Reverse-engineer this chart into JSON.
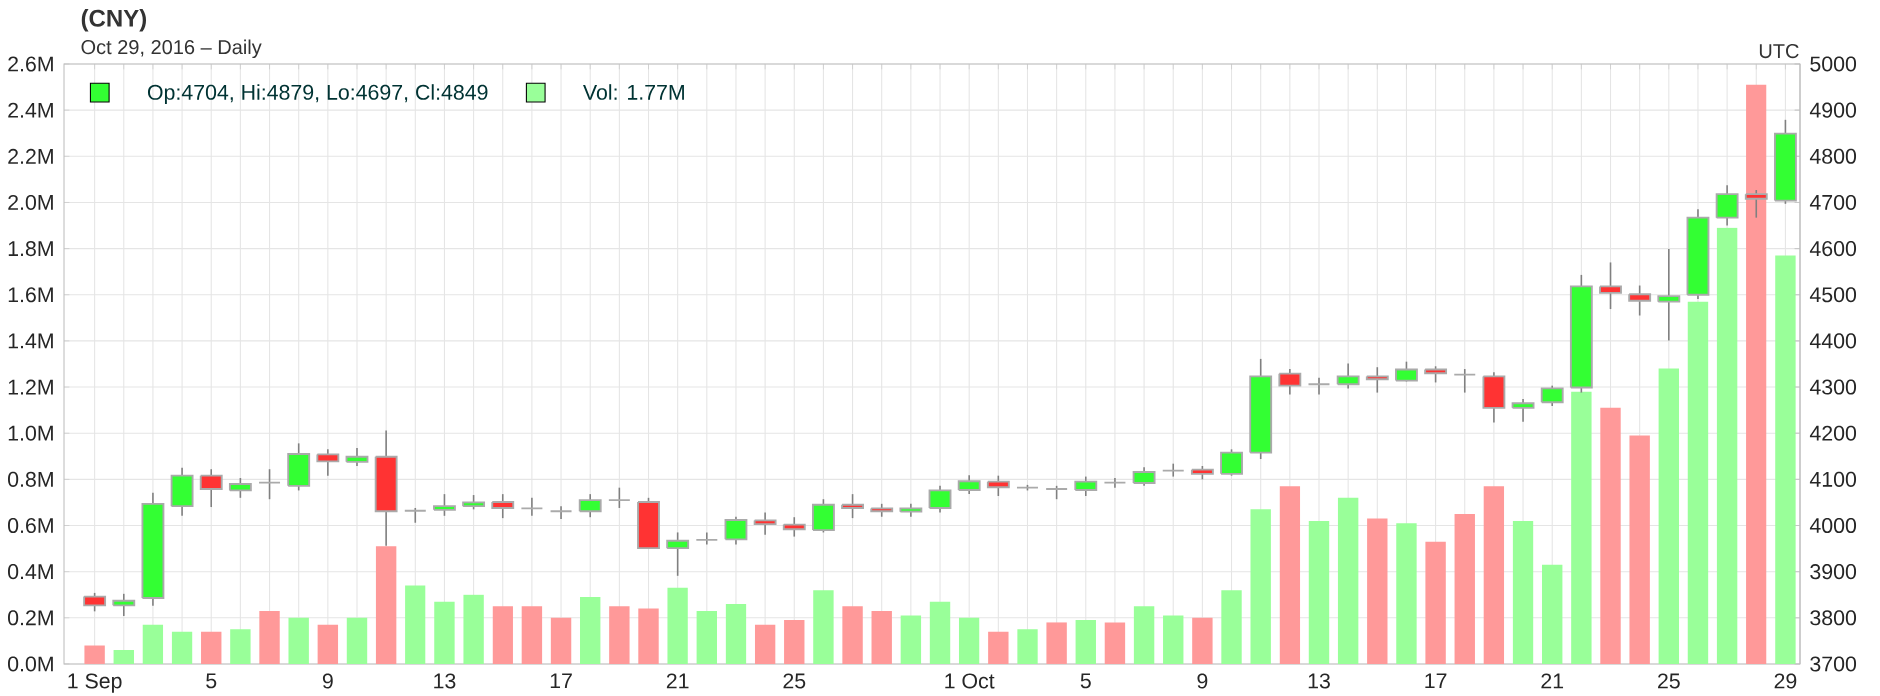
{
  "chart_data": {
    "type": "candlestick",
    "title": "(CNY)",
    "subtitle": "Oct 29, 2016 – Daily",
    "annotations": [
      "UTC"
    ],
    "categories": [
      "1 Sep",
      null,
      null,
      null,
      "5",
      null,
      null,
      null,
      "9",
      null,
      null,
      null,
      "13",
      null,
      null,
      null,
      "17",
      null,
      null,
      null,
      "21",
      null,
      null,
      null,
      "25",
      null,
      null,
      null,
      null,
      null,
      "1 Oct",
      null,
      null,
      null,
      "5",
      null,
      null,
      null,
      "9",
      null,
      null,
      null,
      "13",
      null,
      null,
      null,
      "17",
      null,
      null,
      null,
      "21",
      null,
      null,
      null,
      "25",
      null,
      null,
      null,
      "29"
    ],
    "series": [
      {
        "name": "Op:4704, Hi:4879, Lo:4697, Cl:4849",
        "axis": "y2",
        "color": "#33ff33",
        "colors": [
          "#ff3333",
          "#33ff33",
          "#33ff33",
          "#33ff33",
          "#ff3333",
          "#33ff33",
          "#aaaaaa",
          "#33ff33",
          "#ff3333",
          "#33ff33",
          "#ff3333",
          "#aaaaaa",
          "#33ff33",
          "#33ff33",
          "#ff3333",
          "#aaaaaa",
          "#aaaaaa",
          "#33ff33",
          "#aaaaaa",
          "#ff3333",
          "#33ff33",
          "#aaaaaa",
          "#33ff33",
          "#ff3333",
          "#ff3333",
          "#33ff33",
          "#ff3333",
          "#ff3333",
          "#33ff33",
          "#33ff33",
          "#33ff33",
          "#ff3333",
          "#aaaaaa",
          "#aaaaaa",
          "#33ff33",
          "#aaaaaa",
          "#33ff33",
          "#aaaaaa",
          "#ff3333",
          "#33ff33",
          "#33ff33",
          "#ff3333",
          "#aaaaaa",
          "#33ff33",
          "#ff3333",
          "#33ff33",
          "#ff3333",
          "#aaaaaa",
          "#ff3333",
          "#33ff33",
          "#33ff33",
          "#33ff33",
          "#ff3333",
          "#ff3333",
          "#33ff33",
          "#33ff33",
          "#33ff33",
          "#ff3333",
          "#33ff33"
        ],
        "ohlc": [
          [
            3846,
            3854,
            3814,
            3827
          ],
          [
            3827,
            3852,
            3804,
            3837
          ],
          [
            3843,
            4071,
            3826,
            4047
          ],
          [
            4042,
            4125,
            4021,
            4108
          ],
          [
            4108,
            4122,
            4040,
            4079
          ],
          [
            4076,
            4103,
            4060,
            4090
          ],
          [
            4093,
            4122,
            4057,
            4093
          ],
          [
            4086,
            4178,
            4076,
            4155
          ],
          [
            4154,
            4165,
            4108,
            4139
          ],
          [
            4138,
            4168,
            4129,
            4149
          ],
          [
            4149,
            4206,
            3956,
            4031
          ],
          [
            4032,
            4038,
            4006,
            4032
          ],
          [
            4034,
            4068,
            4021,
            4042
          ],
          [
            4042,
            4066,
            4035,
            4050
          ],
          [
            4051,
            4068,
            4016,
            4038
          ],
          [
            4037,
            4060,
            4021,
            4037
          ],
          [
            4031,
            4042,
            4014,
            4031
          ],
          [
            4031,
            4068,
            4018,
            4055
          ],
          [
            4055,
            4082,
            4038,
            4055
          ],
          [
            4051,
            4060,
            3951,
            3951
          ],
          [
            3951,
            3985,
            3891,
            3967
          ],
          [
            3969,
            3985,
            3959,
            3969
          ],
          [
            3970,
            4019,
            3959,
            4012
          ],
          [
            4011,
            4028,
            3980,
            4003
          ],
          [
            4002,
            4018,
            3976,
            3992
          ],
          [
            3990,
            4057,
            3985,
            4045
          ],
          [
            4045,
            4068,
            4016,
            4038
          ],
          [
            4037,
            4047,
            4019,
            4031
          ],
          [
            4030,
            4047,
            4019,
            4037
          ],
          [
            4038,
            4086,
            4028,
            4076
          ],
          [
            4077,
            4109,
            4068,
            4096
          ],
          [
            4095,
            4108,
            4064,
            4083
          ],
          [
            4082,
            4088,
            4076,
            4082
          ],
          [
            4079,
            4086,
            4057,
            4079
          ],
          [
            4077,
            4106,
            4064,
            4095
          ],
          [
            4093,
            4103,
            4082,
            4093
          ],
          [
            4092,
            4126,
            4086,
            4116
          ],
          [
            4119,
            4134,
            4106,
            4119
          ],
          [
            4121,
            4129,
            4100,
            4112
          ],
          [
            4112,
            4165,
            4108,
            4158
          ],
          [
            4158,
            4361,
            4144,
            4323
          ],
          [
            4329,
            4339,
            4284,
            4303
          ],
          [
            4306,
            4320,
            4284,
            4306
          ],
          [
            4306,
            4351,
            4297,
            4323
          ],
          [
            4323,
            4343,
            4288,
            4317
          ],
          [
            4314,
            4355,
            4312,
            4338
          ],
          [
            4338,
            4345,
            4310,
            4330
          ],
          [
            4327,
            4339,
            4288,
            4327
          ],
          [
            4323,
            4332,
            4223,
            4255
          ],
          [
            4255,
            4274,
            4225,
            4265
          ],
          [
            4267,
            4303,
            4259,
            4297
          ],
          [
            4299,
            4543,
            4288,
            4518
          ],
          [
            4518,
            4570,
            4469,
            4504
          ],
          [
            4501,
            4520,
            4455,
            4487
          ],
          [
            4485,
            4599,
            4401,
            4497
          ],
          [
            4500,
            4685,
            4491,
            4667
          ],
          [
            4667,
            4737,
            4650,
            4718
          ],
          [
            4718,
            4727,
            4667,
            4708
          ],
          [
            4704,
            4879,
            4697,
            4849
          ]
        ]
      },
      {
        "type": "bar",
        "name": "Vol: 1.77M",
        "color": "#99ff99",
        "colors": [
          "#ff9999",
          "#99ff99",
          "#99ff99",
          "#99ff99",
          "#ff9999",
          "#99ff99",
          "#ff9999",
          "#99ff99",
          "#ff9999",
          "#99ff99",
          "#ff9999",
          "#99ff99",
          "#99ff99",
          "#99ff99",
          "#ff9999",
          "#ff9999",
          "#ff9999",
          "#99ff99",
          "#ff9999",
          "#ff9999",
          "#99ff99",
          "#99ff99",
          "#99ff99",
          "#ff9999",
          "#ff9999",
          "#99ff99",
          "#ff9999",
          "#ff9999",
          "#99ff99",
          "#99ff99",
          "#99ff99",
          "#ff9999",
          "#99ff99",
          "#ff9999",
          "#99ff99",
          "#ff9999",
          "#99ff99",
          "#99ff99",
          "#ff9999",
          "#99ff99",
          "#99ff99",
          "#ff9999",
          "#99ff99",
          "#99ff99",
          "#ff9999",
          "#99ff99",
          "#ff9999",
          "#ff9999",
          "#ff9999",
          "#99ff99",
          "#99ff99",
          "#99ff99",
          "#ff9999",
          "#ff9999",
          "#99ff99",
          "#99ff99",
          "#99ff99",
          "#ff9999",
          "#99ff99"
        ],
        "values": [
          0.08,
          0.06,
          0.17,
          0.14,
          0.14,
          0.15,
          0.23,
          0.2,
          0.17,
          0.2,
          0.51,
          0.34,
          0.27,
          0.3,
          0.25,
          0.25,
          0.2,
          0.29,
          0.25,
          0.24,
          0.33,
          0.23,
          0.26,
          0.17,
          0.19,
          0.32,
          0.25,
          0.23,
          0.21,
          0.27,
          0.2,
          0.14,
          0.15,
          0.18,
          0.19,
          0.18,
          0.25,
          0.21,
          0.2,
          0.32,
          0.67,
          0.77,
          0.62,
          0.72,
          0.63,
          0.61,
          0.53,
          0.65,
          0.77,
          0.62,
          0.43,
          1.18,
          1.11,
          0.99,
          1.28,
          1.57,
          1.89,
          2.51,
          1.77
        ]
      }
    ],
    "ylim": [
      0,
      2.6
    ],
    "yticks": [
      {
        "value": 0,
        "label": "0.0M"
      },
      {
        "value": 0.2,
        "label": "0.2M"
      },
      {
        "value": 0.4,
        "label": "0.4M"
      },
      {
        "value": 0.6,
        "label": "0.6M"
      },
      {
        "value": 0.8,
        "label": "0.8M"
      },
      {
        "value": 1.0,
        "label": "1.0M"
      },
      {
        "value": 1.2,
        "label": "1.2M"
      },
      {
        "value": 1.4,
        "label": "1.4M"
      },
      {
        "value": 1.6,
        "label": "1.6M"
      },
      {
        "value": 1.8,
        "label": "1.8M"
      },
      {
        "value": 2.0,
        "label": "2.0M"
      },
      {
        "value": 2.2,
        "label": "2.2M"
      },
      {
        "value": 2.4,
        "label": "2.4M"
      },
      {
        "value": 2.6,
        "label": "2.6M"
      }
    ],
    "y2lim": [
      3700,
      5000
    ],
    "y2ticks": [
      3700,
      3800,
      3900,
      4000,
      4100,
      4200,
      4300,
      4400,
      4500,
      4600,
      4700,
      4800,
      4900,
      5000
    ],
    "grid": true,
    "legend": "top left"
  }
}
